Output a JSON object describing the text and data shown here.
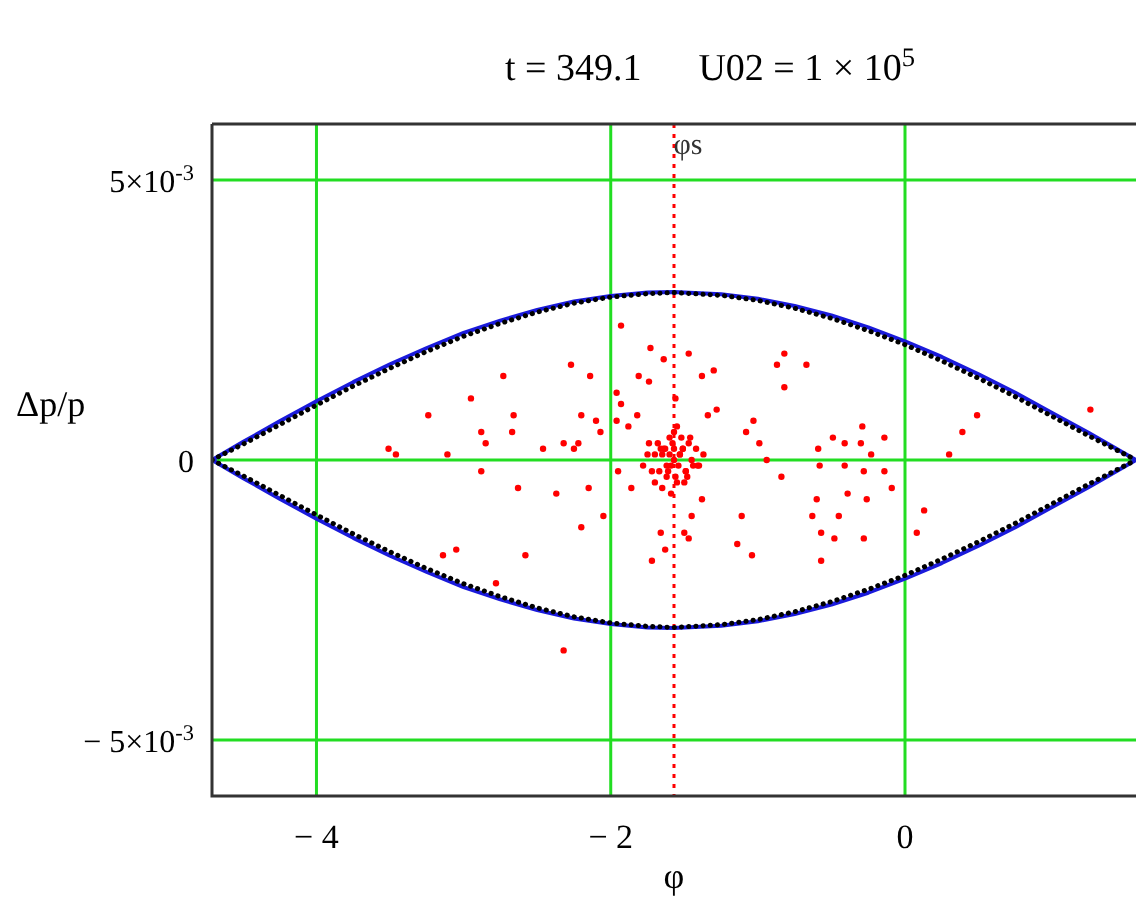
{
  "chart_data": {
    "type": "line",
    "title": "t = 349.1      U02 = 1 × 10$^{5}$",
    "xlabel": "φ",
    "ylabel": "Δp/p",
    "xlim": [
      -4.71,
      1.57
    ],
    "ylim": [
      -0.006,
      0.006
    ],
    "xticks": [
      {
        "value": -4,
        "label": "− 4"
      },
      {
        "value": -2,
        "label": "− 2"
      },
      0
    ],
    "yticks": [
      {
        "value": 0.005,
        "label": "5×10$^{-3}$"
      },
      0,
      {
        "value": -0.005,
        "label": "− 5×10$^{-3}$"
      }
    ],
    "grid": true,
    "ref_lines": [
      {
        "axis": "x",
        "value": -1.57,
        "label": "φs",
        "color": "#ff0000",
        "line_style": "dotted"
      }
    ],
    "series": [
      {
        "color": "#1a1adb",
        "line_style": "solid",
        "x": [
          -4.71,
          -4.5,
          -4.25,
          -4,
          -3.75,
          -3.5,
          -3.25,
          -3,
          -2.75,
          -2.5,
          -2.25,
          -2,
          -1.75,
          -1.57,
          -1.25,
          -1,
          -0.75,
          -0.5,
          -0.25,
          0,
          0.25,
          0.5,
          0.75,
          1,
          1.25,
          1.57,
          null,
          -4.71,
          -4.5,
          -4.25,
          -4,
          -3.75,
          -3.5,
          -3.25,
          -3,
          -2.75,
          -2.5,
          -2.25,
          -2,
          -1.75,
          -1.57,
          -1.25,
          -1,
          -0.75,
          -0.5,
          -0.25,
          0,
          0.25,
          0.5,
          0.75,
          1,
          1.25,
          1.57
        ],
        "values": [
          0,
          0.00032,
          0.00069,
          0.00105,
          0.00139,
          0.00171,
          0.002,
          0.00227,
          0.00249,
          0.00268,
          0.00283,
          0.00293,
          0.00299,
          0.003,
          0.00296,
          0.00288,
          0.00275,
          0.00258,
          0.00237,
          0.00212,
          0.00184,
          0.00153,
          0.0012,
          0.00084,
          0.00048,
          0,
          null,
          0,
          -0.00032,
          -0.00069,
          -0.00105,
          -0.00139,
          -0.00171,
          -0.002,
          -0.00227,
          -0.00249,
          -0.00268,
          -0.00283,
          -0.00293,
          -0.00299,
          -0.003,
          -0.00296,
          -0.00288,
          -0.00275,
          -0.00258,
          -0.00237,
          -0.00212,
          -0.00184,
          -0.00153,
          -0.0012,
          -0.00084,
          -0.00048,
          0
        ]
      },
      {
        "color": "#000000",
        "line_style": "dotted",
        "x": [
          -4.71,
          -4.5,
          -4.25,
          -4,
          -3.75,
          -3.5,
          -3.25,
          -3,
          -2.75,
          -2.5,
          -2.25,
          -2,
          -1.75,
          -1.57,
          -1.25,
          -1,
          -0.75,
          -0.5,
          -0.25,
          0,
          0.25,
          0.5,
          0.75,
          1,
          1.25,
          1.57,
          null,
          -4.71,
          -4.5,
          -4.25,
          -4,
          -3.75,
          -3.5,
          -3.25,
          -3,
          -2.75,
          -2.5,
          -2.25,
          -2,
          -1.75,
          -1.57,
          -1.25,
          -1,
          -0.75,
          -0.5,
          -0.25,
          0,
          0.25,
          0.5,
          0.75,
          1,
          1.25,
          1.57
        ],
        "values": [
          0,
          0.00028,
          0.00063,
          0.00098,
          0.00132,
          0.00164,
          0.00194,
          0.00221,
          0.00244,
          0.00264,
          0.0028,
          0.00291,
          0.00297,
          0.00299,
          0.00294,
          0.00285,
          0.00271,
          0.00253,
          0.00231,
          0.00206,
          0.00177,
          0.00146,
          0.00113,
          0.00078,
          0.00043,
          0,
          null,
          0,
          -0.00028,
          -0.00063,
          -0.00098,
          -0.00132,
          -0.00164,
          -0.00194,
          -0.00221,
          -0.00244,
          -0.00264,
          -0.0028,
          -0.00291,
          -0.00297,
          -0.00299,
          -0.00294,
          -0.00285,
          -0.00271,
          -0.00253,
          -0.00231,
          -0.00206,
          -0.00177,
          -0.00146,
          -0.00113,
          -0.00078,
          -0.00043,
          0
        ]
      },
      {
        "type": "scatter",
        "color": "#ff0000",
        "marker": "circle",
        "x": [
          -1.93,
          -1.73,
          -1.64,
          -1.47,
          -2.27,
          -2.14,
          -1.81,
          -1.74,
          -1.38,
          -1.3,
          -1.96,
          -1.56,
          -1.34,
          -1.28,
          -1.93,
          -1.82,
          -2.1,
          -2.2,
          -1.96,
          -2.07,
          -1.88,
          -2.22,
          -2.32,
          -2.25,
          -2.46,
          -2.73,
          -2.95,
          -3.24,
          -2.66,
          -2.88,
          -2.67,
          -2.85,
          -3.51,
          -3.46,
          -3.11,
          -2.88,
          -2.63,
          -2.37,
          -2.15,
          -2.05,
          -2.2,
          -2.58,
          -3.05,
          -3.14,
          -2.78,
          -2.32,
          -1.95,
          -1.86,
          -1.66,
          -1.63,
          -1.72,
          -1.5,
          -1.47,
          -1.45,
          -1.38,
          -1.11,
          -1.14,
          -1.04,
          -0.84,
          -0.94,
          -0.99,
          -1.08,
          -1.03,
          -0.87,
          -0.82,
          -0.82,
          -0.67,
          -0.59,
          -0.58,
          -0.49,
          -0.41,
          -0.3,
          -0.29,
          -0.14,
          -0.23,
          -0.41,
          -0.28,
          -0.14,
          -0.09,
          -0.39,
          -0.26,
          -0.6,
          -0.63,
          -0.45,
          -0.57,
          -0.48,
          -0.28,
          -0.57,
          0.13,
          0.08,
          0.3,
          0.39,
          0.49,
          1.26,
          -1.57,
          -1.6,
          -1.54,
          -1.63,
          -1.51,
          -1.67,
          -1.47,
          -1.7,
          -1.44,
          -1.58,
          -1.56,
          -1.62,
          -1.52,
          -1.65,
          -1.49,
          -1.75,
          -1.4,
          -1.6,
          -1.55,
          -1.68,
          -1.46,
          -1.72,
          -1.42,
          -1.59,
          -1.53,
          -1.64,
          -1.5,
          -1.78,
          -1.37,
          -1.61,
          -1.57,
          -1.66,
          -1.48,
          -1.7,
          -1.45,
          -1.55,
          -1.59,
          -1.53,
          -1.62,
          -1.51,
          -1.74,
          -1.41,
          -1.57,
          -1.65,
          -1.49
        ],
        "values": [
          0.0024,
          0.002,
          0.0018,
          0.0019,
          0.0017,
          0.0015,
          0.0015,
          0.0014,
          0.0015,
          0.0016,
          0.0012,
          0.0011,
          0.0008,
          0.0009,
          0.001,
          0.0008,
          0.0007,
          0.0008,
          0.0007,
          0.0005,
          0.0006,
          0.0003,
          0.0003,
          0.0002,
          0.0002,
          0.0015,
          0.0011,
          0.0008,
          0.0008,
          0.0005,
          0.0005,
          0.0003,
          0.0002,
          0.0001,
          0.0001,
          -0.0002,
          -0.0005,
          -0.0006,
          -0.0005,
          -0.001,
          -0.0012,
          -0.0017,
          -0.0016,
          -0.0017,
          -0.0022,
          -0.0034,
          -0.0002,
          -0.0005,
          -0.0013,
          -0.0016,
          -0.0018,
          -0.0013,
          -0.0014,
          -0.001,
          -0.0007,
          -0.001,
          -0.0015,
          -0.0017,
          -0.0003,
          0,
          0.0003,
          0.0005,
          0.0007,
          0.0017,
          0.0019,
          0.0013,
          0.0017,
          0.0002,
          -0.0001,
          0.0004,
          0.0003,
          0.0003,
          0.0006,
          0.0004,
          0.0001,
          -0.0001,
          -0.0002,
          -0.0002,
          -0.0005,
          -0.0006,
          -0.0007,
          -0.0007,
          -0.001,
          -0.001,
          -0.0013,
          -0.0014,
          -0.0014,
          -0.0018,
          -0.0009,
          -0.0013,
          0.0001,
          0.0005,
          0.0008,
          0.0009,
          0,
          0.0001,
          -0.0001,
          0.0002,
          0.0002,
          -0.0002,
          0.0003,
          0.0001,
          -0.0001,
          0.0003,
          -0.0003,
          -0.0003,
          0.0004,
          0.0001,
          -0.0002,
          0.0001,
          -0.0001,
          0.0004,
          -0.0004,
          0.0003,
          0.0004,
          -0.0002,
          0.0002,
          -0.0001,
          0.0001,
          0.0002,
          -0.0004,
          -0.0001,
          0.0001,
          -0.0002,
          0.0005,
          0.0002,
          -0.0003,
          -0.0004,
          0,
          0.0006,
          -0.0006,
          0.0001,
          -0.0001,
          0.0002,
          0.0003,
          -0.0001,
          0.0002,
          -0.0005,
          -0.0002
        ]
      }
    ]
  }
}
